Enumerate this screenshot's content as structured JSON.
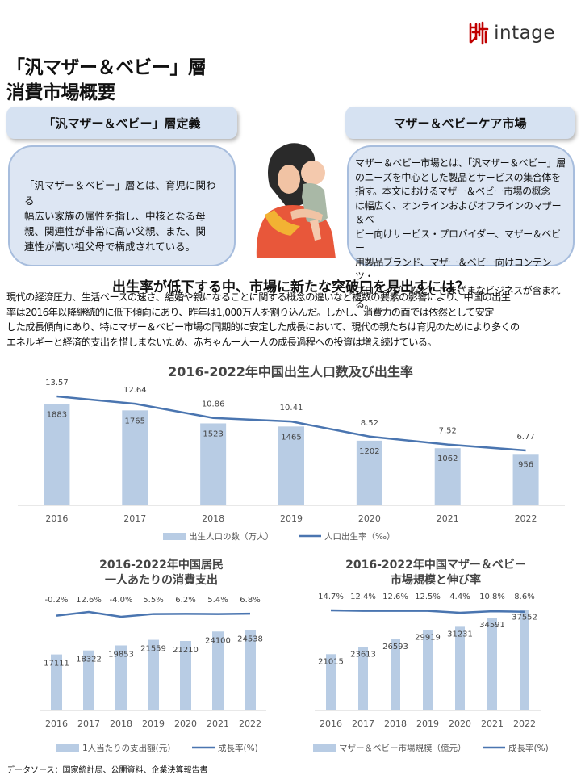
{
  "brand": {
    "name": "intage",
    "colors": {
      "accent": "#c00000",
      "bar": "#b8cce4",
      "line": "#4a75b0",
      "panel": "#d6e2f2"
    }
  },
  "title": {
    "line1": "「汎マザー＆ベビー」層",
    "line2": "消費市場概要"
  },
  "left_panel": {
    "heading": "「汎マザー＆ベビー」層定義",
    "lines": [
      "「汎マザー＆ベビー」層とは、育児に関わる",
      "幅広い家族の属性を指し、中核となる母",
      "親、関連性が非常に高い父親、また、関",
      "連性が高い祖父母で構成されている。"
    ]
  },
  "right_panel": {
    "heading": "マザー＆ベビーケア市場",
    "lines": [
      "マザー＆ベビー市場とは、「汎マザー＆ベビー」層",
      "のニーズを中心とした製品とサービスの集合体を",
      "指す。本文におけるマザー＆ベビー市場の概念",
      "は幅広く、オンラインおよびオフラインのマザー＆ベ",
      "ビー向けサービス・プロバイダー、マザー＆ベビー",
      "用製品ブランド、マザー＆ベビー向けコンテンツ・",
      "プロバイダーなど、さまざまなビジネスが含まれる。"
    ]
  },
  "headline": "出生率が低下する中、市場に新たな突破口を見出すには？",
  "intro": {
    "lines": [
      "現代の経済圧力、生活ペースの速さ、結婚や親になることに関する概念の違いなど複数の要素の影響により、中国の出生",
      "率は2016年以降継続的に低下傾向にあり、昨年は1,000万人を割り込んだ。しかし、消費力の面では依然として安定",
      "した成長傾向にあり、特にマザー＆ベビー市場の同期的に安定した成長において、現代の親たちは育児のためにより多くの",
      "エネルギーと経済的支出を惜しまないため、赤ちゃん一人一人の成長過程への投資は増え続けている。"
    ]
  },
  "chart_data": [
    {
      "type": "bar",
      "title": "2016-2022年中国出生人口数及び出生率",
      "categories": [
        "2016",
        "2017",
        "2018",
        "2019",
        "2020",
        "2021",
        "2022"
      ],
      "series": [
        {
          "name": "出生人口の数（万人）",
          "kind": "bar",
          "values": [
            1883,
            1765,
            1523,
            1465,
            1202,
            1062,
            956
          ]
        },
        {
          "name": "人口出生率（‰）",
          "kind": "line",
          "values": [
            13.57,
            12.64,
            10.86,
            10.41,
            8.52,
            7.52,
            6.77
          ]
        }
      ],
      "bar_ylim": [
        0,
        2700
      ],
      "line_ylim": [
        0,
        16.5
      ],
      "grid": false,
      "legend": "bottom"
    },
    {
      "type": "bar",
      "title": "2016-2022年中国居民\n一人あたりの消費支出",
      "categories": [
        "2016",
        "2017",
        "2018",
        "2019",
        "2020",
        "2021",
        "2022"
      ],
      "series": [
        {
          "name": "1人当たりの支出額(元)",
          "kind": "bar",
          "values": [
            17111,
            18322,
            19853,
            21559,
            21210,
            24100,
            24538
          ]
        },
        {
          "name": "成長率(%)",
          "kind": "line",
          "values": [
            -0.2,
            12.6,
            -4.0,
            5.5,
            6.2,
            5.4,
            6.8
          ]
        }
      ],
      "value_labels": [
        "17111",
        "18322",
        "19853",
        "21559",
        "21210",
        "24100",
        "24538"
      ],
      "rate_labels": [
        "-0.2%",
        "12.6%",
        "-4.0%",
        "5.5%",
        "6.2%",
        "5.4%",
        "6.8%"
      ],
      "bar_ylim": [
        0,
        36000
      ],
      "grid": false,
      "legend": "bottom"
    },
    {
      "type": "bar",
      "title": "2016-2022年中国マザー＆ベビー\n市場規模と伸び率",
      "categories": [
        "2016",
        "2017",
        "2018",
        "2019",
        "2020",
        "2021",
        "2022"
      ],
      "series": [
        {
          "name": "マザー＆ベビー市場規模（億元）",
          "kind": "bar",
          "values": [
            21015,
            23613,
            26593,
            29919,
            31231,
            34591,
            37552
          ]
        },
        {
          "name": "成長率(%)",
          "kind": "line",
          "values": [
            14.7,
            12.4,
            12.6,
            12.5,
            4.4,
            10.8,
            8.6
          ]
        }
      ],
      "value_labels": [
        "21015",
        "23613",
        "26593",
        "29919",
        "31231",
        "34591",
        "37552"
      ],
      "rate_labels": [
        "14.7%",
        "12.4%",
        "12.6%",
        "12.5%",
        "4.4%",
        "10.8%",
        "8.6%"
      ],
      "bar_ylim": [
        0,
        44000
      ],
      "grid": false,
      "legend": "bottom"
    }
  ],
  "source": "データソース：国家統計局、公開資料、企業決算報告書"
}
